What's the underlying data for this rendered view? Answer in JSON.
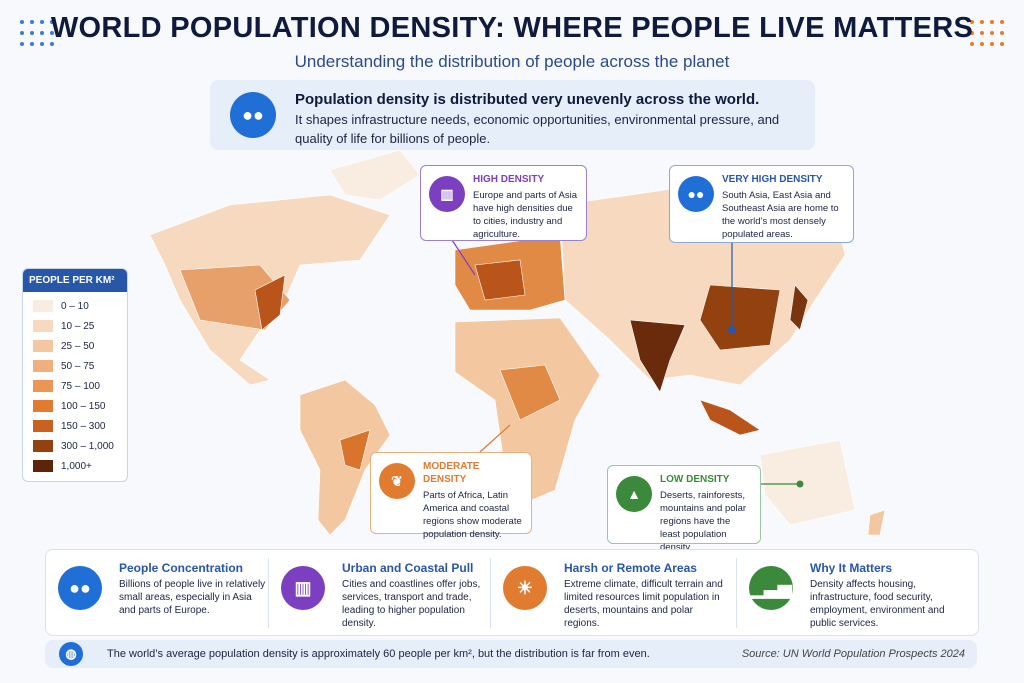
{
  "header": {
    "title": "WORLD POPULATION DENSITY: WHERE PEOPLE LIVE MATTERS",
    "subtitle": "Understanding the distribution of people across the planet"
  },
  "intro": {
    "headline": "Population density is distributed very unevenly across the world.",
    "text": "It shapes infrastructure needs, economic opportunities, environmental pressure, and quality of life for billions of people."
  },
  "legend": {
    "title": "PEOPLE PER KM²",
    "items": [
      {
        "label": "0 – 10",
        "color": "#f9ede2"
      },
      {
        "label": "10 – 25",
        "color": "#f6d9bf"
      },
      {
        "label": "25 – 50",
        "color": "#f3c7a0"
      },
      {
        "label": "50 – 75",
        "color": "#f0b07e"
      },
      {
        "label": "75 – 100",
        "color": "#ec9555"
      },
      {
        "label": "100 – 150",
        "color": "#e07b2f"
      },
      {
        "label": "150 – 300",
        "color": "#c8621e"
      },
      {
        "label": "300 – 1,000",
        "color": "#93420f"
      },
      {
        "label": "1,000+",
        "color": "#5c2408"
      }
    ]
  },
  "callouts": [
    {
      "title": "HIGH DENSITY",
      "text": "Europe and parts of Asia have high densities due to cities, industry and agriculture."
    },
    {
      "title": "VERY HIGH DENSITY",
      "text": "South Asia, East Asia and Southeast Asia are home to the world’s most densely populated areas."
    },
    {
      "title": "MODERATE DENSITY",
      "text": "Parts of Africa, Latin America and coastal regions show moderate population density."
    },
    {
      "title": "LOW DENSITY",
      "text": "Deserts, rainforests, mountains and polar regions have the least population density."
    }
  ],
  "cards": [
    {
      "title": "People Concentration",
      "text": "Billions of people live in relatively small areas, especially in Asia and parts of Europe."
    },
    {
      "title": "Urban and Coastal Pull",
      "text": "Cities and coastlines offer jobs, services, transport and trade, leading to higher population density."
    },
    {
      "title": "Harsh or Remote Areas",
      "text": "Extreme climate, difficult terrain and limited resources limit population in deserts, mountains and polar regions."
    },
    {
      "title": "Why It Matters",
      "text": "Density affects housing, infrastructure, food security, employment, environment and public services."
    }
  ],
  "footer": {
    "note": "The world’s average population density is approximately 60 people per km², but the distribution is far from even.",
    "source": "Source:  UN World Population Prospects 2024"
  }
}
